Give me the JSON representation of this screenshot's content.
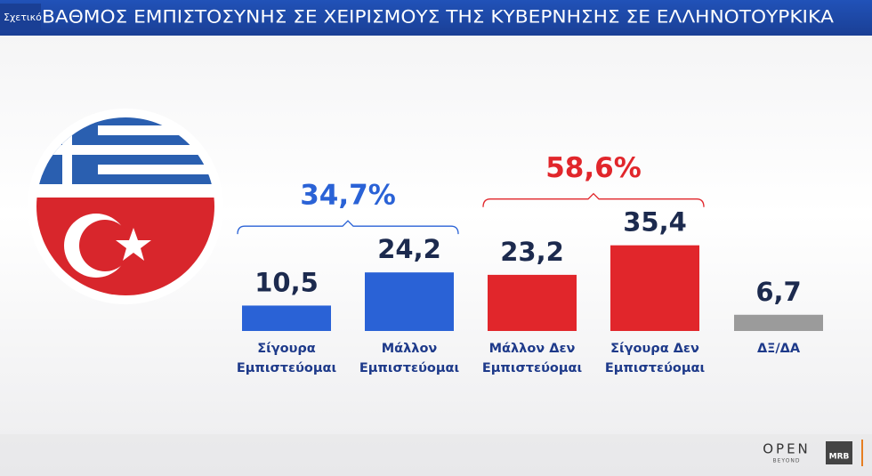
{
  "header": {
    "tag": "Σχετικό",
    "title": "ΒΑΘΜΟΣ ΕΜΠΙΣΤΟΣΥΝΗΣ ΣΕ ΧΕΙΡΙΣΜΟΥΣ ΤΗΣ ΚΥΒΕΡΝΗΣΗΣ ΣΕ ΕΛΛΗΝΟΤΟΥΡΚΙΚΑ"
  },
  "chart_data": {
    "type": "bar",
    "categories": [
      "Σίγουρα Εμπιστεύομαι",
      "Μάλλον Εμπιστεύομαι",
      "Μάλλον Δεν Εμπιστεύομαι",
      "Σίγουρα Δεν Εμπιστεύομαι",
      "ΔΞ/ΔΑ"
    ],
    "values": [
      10.5,
      24.2,
      23.2,
      35.4,
      6.7
    ],
    "value_labels": [
      "10,5",
      "24,2",
      "23,2",
      "35,4",
      "6,7"
    ],
    "colors": [
      "#2a62d6",
      "#2a62d6",
      "#e1262b",
      "#e1262b",
      "#9b9b9b"
    ],
    "groups": [
      {
        "value": 34.7,
        "value_label": "34,7%",
        "color": "#2a62d6"
      },
      {
        "value": 58.6,
        "value_label": "58,6%",
        "color": "#e1262b"
      }
    ]
  },
  "footer": {
    "brand": "OPEN",
    "brand_sub": "BEYOND",
    "source": "MRB"
  }
}
